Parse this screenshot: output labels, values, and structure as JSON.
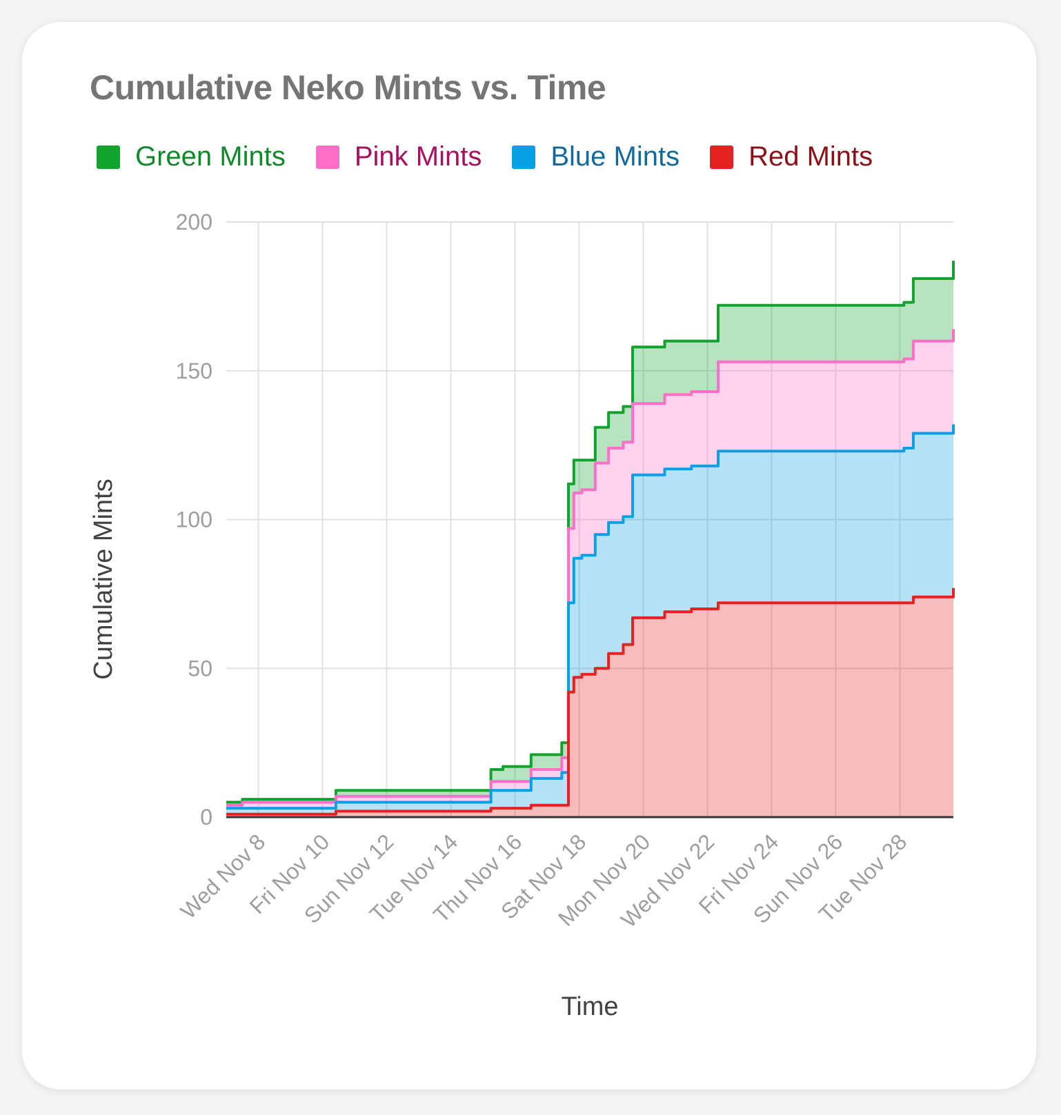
{
  "chart_data": {
    "type": "area",
    "stacked": true,
    "title": "Cumulative Neko Mints vs. Time",
    "xlabel": "Time",
    "ylabel": "Cumulative Mints",
    "ylim": [
      0,
      200
    ],
    "yticks": [
      0,
      50,
      100,
      150,
      200
    ],
    "xlim": [
      "2023-11-07",
      "2023-11-29T16:00"
    ],
    "xticks": [
      "2023-11-08",
      "2023-11-10",
      "2023-11-12",
      "2023-11-14",
      "2023-11-16",
      "2023-11-18",
      "2023-11-20",
      "2023-11-22",
      "2023-11-24",
      "2023-11-26",
      "2023-11-28"
    ],
    "xtick_labels": [
      "Wed Nov 8",
      "Fri Nov 10",
      "Sun Nov 12",
      "Tue Nov 14",
      "Thu Nov 16",
      "Sat Nov 18",
      "Mon Nov 20",
      "Wed Nov 22",
      "Fri Nov 24",
      "Sun Nov 26",
      "Tue Nov 28"
    ],
    "grid": true,
    "legend_position": "top",
    "x": [
      "2023-11-07T00:00",
      "2023-11-07T12:00",
      "2023-11-10T10:00",
      "2023-11-14T07:00",
      "2023-11-15T06:00",
      "2023-11-15T15:00",
      "2023-11-16T12:00",
      "2023-11-17T11:00",
      "2023-11-17T16:00",
      "2023-11-17T20:00",
      "2023-11-18T02:00",
      "2023-11-18T12:00",
      "2023-11-18T22:00",
      "2023-11-19T09:00",
      "2023-11-19T16:00",
      "2023-11-20T16:00",
      "2023-11-21T12:00",
      "2023-11-22T08:00",
      "2023-11-28T03:00",
      "2023-11-28T10:00",
      "2023-11-29T16:00"
    ],
    "series": [
      {
        "name": "Red Mints",
        "color": "#e52222",
        "values": [
          1,
          1,
          2,
          2,
          3,
          3,
          4,
          4,
          42,
          47,
          48,
          50,
          55,
          58,
          67,
          69,
          70,
          72,
          72,
          74,
          77
        ]
      },
      {
        "name": "Blue Mints",
        "color": "#0aa0e6",
        "values": [
          2,
          2,
          3,
          3,
          6,
          6,
          9,
          11,
          30,
          40,
          40,
          45,
          44,
          43,
          48,
          48,
          48,
          51,
          52,
          55,
          55
        ]
      },
      {
        "name": "Pink Mints",
        "color": "#ff6ec7",
        "values": [
          1,
          2,
          2,
          2,
          3,
          3,
          3,
          5,
          25,
          22,
          22,
          24,
          25,
          25,
          24,
          25,
          25,
          30,
          30,
          31,
          32
        ]
      },
      {
        "name": "Green Mints",
        "color": "#12a32e",
        "values": [
          1,
          1,
          2,
          2,
          4,
          5,
          5,
          5,
          15,
          11,
          10,
          12,
          12,
          12,
          19,
          18,
          17,
          19,
          19,
          21,
          23
        ]
      }
    ]
  },
  "legend_order": [
    "Green Mints",
    "Pink Mints",
    "Blue Mints",
    "Red Mints"
  ],
  "legend_text_colors": {
    "Green Mints": "#0f8a28",
    "Pink Mints": "#a8105e",
    "Blue Mints": "#106b9c",
    "Red Mints": "#8c1016"
  }
}
